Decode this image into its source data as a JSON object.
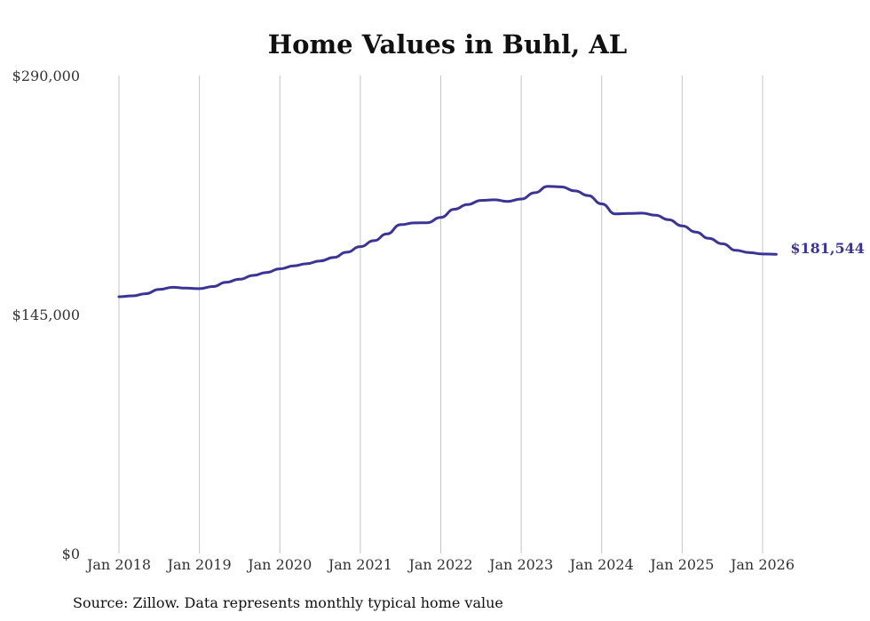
{
  "chart_data": {
    "type": "line",
    "title": "Home Values in Buhl, AL",
    "xlabel": "",
    "ylabel": "",
    "ylim": [
      0,
      290000
    ],
    "y_ticks": [
      {
        "value": 0,
        "label": "$0"
      },
      {
        "value": 145000,
        "label": "$145,000"
      },
      {
        "value": 290000,
        "label": "$290,000"
      }
    ],
    "x_ticks": [
      {
        "value": 2018.0,
        "label": "Jan 2018"
      },
      {
        "value": 2019.0,
        "label": "Jan 2019"
      },
      {
        "value": 2020.0,
        "label": "Jan 2020"
      },
      {
        "value": 2021.0,
        "label": "Jan 2021"
      },
      {
        "value": 2022.0,
        "label": "Jan 2022"
      },
      {
        "value": 2023.0,
        "label": "Jan 2023"
      },
      {
        "value": 2024.0,
        "label": "Jan 2024"
      },
      {
        "value": 2025.0,
        "label": "Jan 2025"
      },
      {
        "value": 2026.0,
        "label": "Jan 2026"
      }
    ],
    "grid": {
      "vertical": true,
      "horizontal": false
    },
    "series": [
      {
        "color": "#3a3595",
        "end_label": "$181,544",
        "points": [
          [
            2018.0,
            155800
          ],
          [
            2018.17,
            156300
          ],
          [
            2018.33,
            157600
          ],
          [
            2018.5,
            160200
          ],
          [
            2018.67,
            161500
          ],
          [
            2018.83,
            161000
          ],
          [
            2019.0,
            160700
          ],
          [
            2019.17,
            162000
          ],
          [
            2019.33,
            164500
          ],
          [
            2019.5,
            166400
          ],
          [
            2019.67,
            168700
          ],
          [
            2019.83,
            170500
          ],
          [
            2020.0,
            172700
          ],
          [
            2020.17,
            174500
          ],
          [
            2020.33,
            175800
          ],
          [
            2020.5,
            177500
          ],
          [
            2020.67,
            179600
          ],
          [
            2020.83,
            182800
          ],
          [
            2021.0,
            186200
          ],
          [
            2021.17,
            189800
          ],
          [
            2021.33,
            193900
          ],
          [
            2021.5,
            199500
          ],
          [
            2021.67,
            200600
          ],
          [
            2021.83,
            200700
          ],
          [
            2022.0,
            203900
          ],
          [
            2022.17,
            208900
          ],
          [
            2022.33,
            211700
          ],
          [
            2022.5,
            214200
          ],
          [
            2022.67,
            214600
          ],
          [
            2022.83,
            213600
          ],
          [
            2023.0,
            215100
          ],
          [
            2023.17,
            218900
          ],
          [
            2023.33,
            222800
          ],
          [
            2023.5,
            222400
          ],
          [
            2023.67,
            220000
          ],
          [
            2023.83,
            217200
          ],
          [
            2024.0,
            212100
          ],
          [
            2024.17,
            206000
          ],
          [
            2024.33,
            206300
          ],
          [
            2024.5,
            206500
          ],
          [
            2024.67,
            205200
          ],
          [
            2024.83,
            202500
          ],
          [
            2025.0,
            198800
          ],
          [
            2025.17,
            195000
          ],
          [
            2025.33,
            191200
          ],
          [
            2025.5,
            187900
          ],
          [
            2025.67,
            183900
          ],
          [
            2025.83,
            182600
          ],
          [
            2026.0,
            181700
          ],
          [
            2026.17,
            181544
          ]
        ]
      }
    ],
    "source": "Source: Zillow. Data represents monthly typical home value"
  }
}
